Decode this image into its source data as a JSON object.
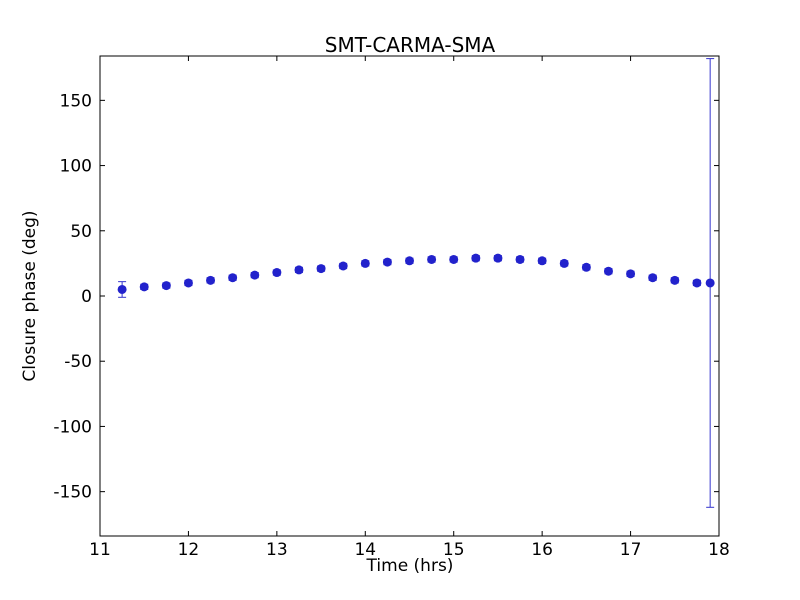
{
  "chart_data": {
    "type": "scatter",
    "title": "SMT-CARMA-SMA",
    "xlabel": "Time (hrs)",
    "ylabel": "Closure phase (deg)",
    "xlim": [
      11,
      18
    ],
    "ylim": [
      -184,
      184
    ],
    "xticks": [
      11,
      12,
      13,
      14,
      15,
      16,
      17,
      18
    ],
    "xtick_labels": [
      "11",
      "12",
      "13",
      "14",
      "15",
      "16",
      "17",
      "18"
    ],
    "yticks": [
      -150,
      -100,
      -50,
      0,
      50,
      100,
      150
    ],
    "ytick_labels": [
      "-150",
      "-100",
      "-50",
      "0",
      "50",
      "100",
      "150"
    ],
    "grid": false,
    "legend": false,
    "marker_color": "#2222cc",
    "errorbar_color": "#3333cc",
    "series": [
      {
        "name": "closure-phase",
        "x": [
          11.25,
          11.5,
          11.75,
          12.0,
          12.25,
          12.5,
          12.75,
          13.0,
          13.25,
          13.5,
          13.75,
          14.0,
          14.25,
          14.5,
          14.75,
          15.0,
          15.25,
          15.5,
          15.75,
          16.0,
          16.25,
          16.5,
          16.75,
          17.0,
          17.25,
          17.5,
          17.75,
          17.9
        ],
        "y": [
          5,
          7,
          8,
          10,
          12,
          14,
          16,
          18,
          20,
          21,
          23,
          25,
          26,
          27,
          28,
          28,
          29,
          29,
          28,
          27,
          25,
          22,
          19,
          17,
          14,
          12,
          10,
          10
        ],
        "yerr": [
          6,
          2,
          2,
          2,
          2,
          2,
          2,
          2,
          2,
          2,
          2,
          2,
          2,
          2,
          2,
          2,
          2,
          2,
          2,
          2,
          2,
          2,
          2,
          2,
          2,
          2,
          2,
          172
        ]
      }
    ]
  }
}
